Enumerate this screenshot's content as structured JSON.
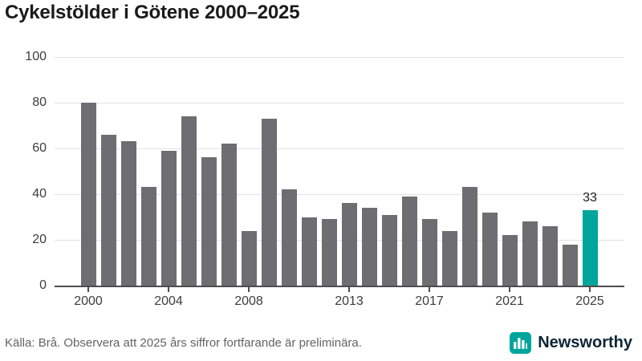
{
  "header": {
    "title": "Cykelstölder i Götene 2000–2025"
  },
  "chart_data": {
    "type": "bar",
    "title": "Cykelstölder i Götene 2000–2025",
    "categories": [
      2000,
      2001,
      2002,
      2003,
      2004,
      2005,
      2006,
      2007,
      2008,
      2009,
      2010,
      2011,
      2012,
      2013,
      2014,
      2015,
      2016,
      2017,
      2018,
      2019,
      2020,
      2021,
      2022,
      2023,
      2024,
      2025
    ],
    "values": [
      80,
      66,
      63,
      43,
      59,
      74,
      56,
      62,
      24,
      73,
      42,
      30,
      29,
      36,
      34,
      31,
      39,
      29,
      24,
      43,
      32,
      22,
      28,
      26,
      18,
      33
    ],
    "highlight_index": 25,
    "highlight_label": "33",
    "xlabel": "",
    "ylabel": "",
    "ylim": [
      0,
      100
    ],
    "yticks": [
      0,
      20,
      40,
      60,
      80,
      100
    ],
    "xticks": [
      2000,
      2004,
      2008,
      2013,
      2017,
      2021,
      2025
    ],
    "grid": "horizontal",
    "legend": "none",
    "bar_color": "#6d6d72",
    "accent_color": "#00a59b"
  },
  "footer": {
    "source": "Källa: Brå. Observera att 2025 års siffror fortfarande är preliminära.",
    "brand": {
      "name": "Newsworthy",
      "icon": "bar-chart-logo-icon",
      "icon_color": "#00a59b",
      "text_color": "#0d2535"
    }
  }
}
